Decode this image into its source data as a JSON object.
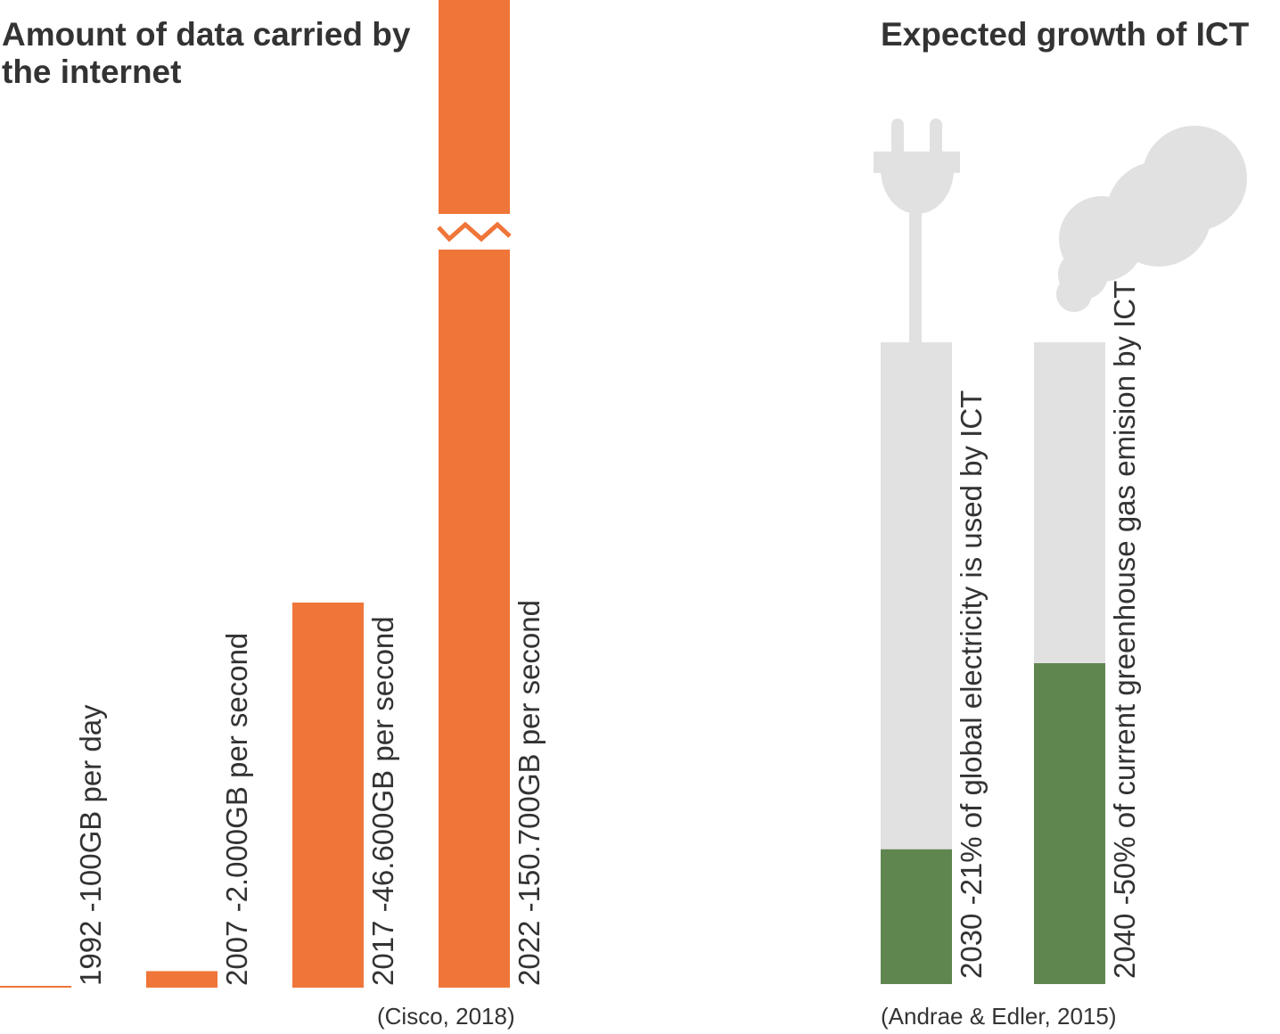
{
  "colors": {
    "internet_bar": "#f07538",
    "ict_fill": "#5f864f",
    "ict_track": "#e1e1e1",
    "icon": "#e1e1e1",
    "text": "#333333"
  },
  "icons": {
    "electricity": "plug-icon",
    "emissions": "cloud-icon"
  },
  "left_panel": {
    "title": "Amount of data carried by the internet",
    "source": "(Cisco, 2018)"
  },
  "right_panel": {
    "title": "Expected growth of ICT",
    "source": "(Andrae & Edler, 2015)"
  },
  "chart_data": [
    {
      "type": "bar",
      "title": "Amount of data carried by the internet",
      "unit": "GB per second",
      "categories": [
        "1992",
        "2007",
        "2017",
        "2022"
      ],
      "values": [
        0.0012,
        2000,
        46600,
        150700
      ],
      "labels": [
        "1992  -100GB per day",
        "2007  -2.000GB per second",
        "2017  -46.600GB per second",
        "2022  -150.700GB per second"
      ],
      "axis_break": "2022",
      "source": "(Cisco, 2018)"
    },
    {
      "type": "bar",
      "title": "Expected growth of ICT",
      "categories": [
        "2030",
        "2040"
      ],
      "values": [
        21,
        50
      ],
      "unit": "%",
      "labels": [
        "2030  -21% of global electricity is used by ICT",
        "2040  -50% of current greenhouse gas emision by ICT"
      ],
      "ylim": [
        0,
        100
      ],
      "source": "(Andrae & Edler, 2015)"
    }
  ]
}
